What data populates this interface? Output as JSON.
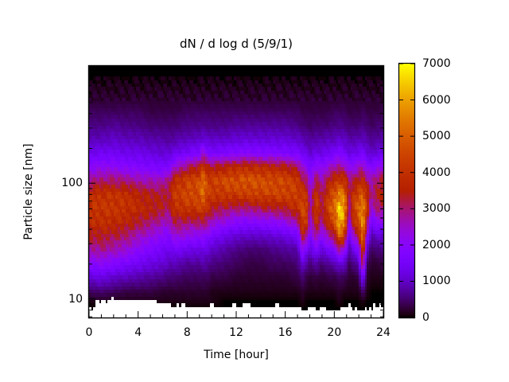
{
  "page": {
    "background": "#ffffff",
    "text_color": "#000000"
  },
  "chart_data": {
    "type": "heatmap",
    "title": "dN / d log d (5/9/1)",
    "xlabel": "Time [hour]",
    "ylabel": "Particle size [nm]",
    "x_range_hour": [
      0,
      24
    ],
    "y_scale": "log",
    "y_range_nm": [
      6.9,
      1030
    ],
    "x_major_ticks": [
      0,
      4,
      8,
      12,
      16,
      20,
      24
    ],
    "x_tick_labels": [
      "0",
      "4",
      "8",
      "12",
      "16",
      "20",
      "24"
    ],
    "x_minor_tick_step_hour": 1,
    "y_labeled_ticks": [
      {
        "value": 10,
        "label": "10"
      },
      {
        "value": 100,
        "label": "100"
      }
    ],
    "y_unlabeled_major_ticks": [
      1000
    ],
    "y_minor_ticks": [
      7,
      8,
      9,
      20,
      30,
      40,
      50,
      60,
      70,
      80,
      90,
      200,
      300,
      400,
      500,
      600,
      700,
      800,
      900
    ],
    "colorbar": {
      "min": 0,
      "max": 7000,
      "tick_values": [
        0,
        1000,
        2000,
        3000,
        4000,
        5000,
        6000,
        7000
      ],
      "tick_labels": [
        "0",
        "1000",
        "2000",
        "3000",
        "4000",
        "5000",
        "6000",
        "7000"
      ],
      "palette": "gnuplot pm3d rgbformulae 7,5,15 (R=sqrt(f), G=f^3, B=sin(2*pi*f))",
      "palette_stops": [
        "#000000",
        "#6001C7",
        "#8806F9",
        "#A7146F",
        "#C13000",
        "#D85D00",
        "#ECA100",
        "#FFFF00"
      ]
    },
    "value_scale": 100,
    "times_hour": [
      0,
      1,
      2,
      3,
      4,
      5,
      6,
      6.5,
      7,
      8,
      9,
      9.3,
      9.7,
      10,
      11,
      12,
      13,
      14,
      15,
      16,
      17,
      17.4,
      17.8,
      18,
      18.5,
      19,
      19.5,
      20,
      20.4,
      20.8,
      21.2,
      21.6,
      22,
      22.3,
      22.7,
      23,
      23.4,
      24
    ],
    "sizes_nm": [
      950,
      720,
      545,
      415,
      315,
      240,
      182,
      138,
      105,
      80,
      61,
      46,
      35,
      26.5,
      20,
      15.2,
      11.5,
      9.5,
      8.2,
      7.0
    ],
    "values_x100": [
      [
        0,
        1,
        2,
        4,
        6,
        9,
        13,
        20,
        28,
        38,
        40,
        38,
        33,
        27,
        19,
        11,
        4,
        1,
        0,
        0
      ],
      [
        0,
        1,
        2,
        4,
        6,
        9,
        14,
        21,
        30,
        40,
        41,
        39,
        34,
        28,
        20,
        12,
        5,
        1,
        0,
        0
      ],
      [
        0,
        1,
        2,
        4,
        7,
        10,
        14,
        21,
        30,
        40,
        41,
        38,
        32,
        26,
        18,
        10,
        4,
        1,
        0,
        0
      ],
      [
        0,
        1,
        2,
        4,
        6,
        9,
        13,
        19,
        29,
        39,
        40,
        36,
        30,
        24,
        16,
        9,
        3,
        1,
        0,
        0
      ],
      [
        0,
        1,
        2,
        4,
        6,
        9,
        13,
        18,
        27,
        36,
        38,
        33,
        26,
        20,
        14,
        8,
        3,
        1,
        0,
        0
      ],
      [
        0,
        1,
        2,
        3,
        5,
        8,
        12,
        17,
        26,
        34,
        36,
        30,
        23,
        17,
        12,
        7,
        3,
        1,
        0,
        0
      ],
      [
        0,
        1,
        2,
        3,
        5,
        8,
        11,
        16,
        26,
        33,
        34,
        26,
        20,
        15,
        11,
        6,
        2,
        1,
        0,
        0
      ],
      [
        0,
        1,
        2,
        3,
        5,
        7,
        11,
        17,
        30,
        33,
        31,
        25,
        18,
        13,
        9,
        5,
        2,
        1,
        0,
        0
      ],
      [
        0,
        1,
        2,
        3,
        5,
        8,
        13,
        24,
        38,
        42,
        40,
        32,
        24,
        15,
        9,
        5,
        2,
        1,
        0,
        0
      ],
      [
        0,
        1,
        2,
        4,
        6,
        9,
        15,
        30,
        43,
        45,
        41,
        30,
        22,
        13,
        7,
        4,
        2,
        1,
        0,
        0
      ],
      [
        0,
        1,
        2,
        4,
        6,
        10,
        17,
        34,
        46,
        46,
        42,
        30,
        20,
        12,
        7,
        4,
        2,
        1,
        0,
        0
      ],
      [
        0,
        1,
        2,
        4,
        7,
        11,
        24,
        40,
        53,
        52,
        44,
        32,
        21,
        13,
        8,
        4,
        2,
        1,
        0,
        0
      ],
      [
        0,
        1,
        2,
        4,
        6,
        10,
        17,
        34,
        44,
        44,
        38,
        28,
        18,
        11,
        7,
        4,
        2,
        1,
        0,
        0
      ],
      [
        0,
        1,
        2,
        4,
        6,
        10,
        16,
        33,
        43,
        41,
        34,
        25,
        16,
        10,
        6,
        3,
        1,
        1,
        0,
        0
      ],
      [
        0,
        1,
        2,
        4,
        6,
        10,
        17,
        35,
        46,
        42,
        32,
        22,
        13,
        8,
        5,
        3,
        1,
        0,
        0,
        0
      ],
      [
        0,
        1,
        2,
        4,
        7,
        11,
        18,
        37,
        47,
        42,
        30,
        19,
        11,
        6,
        4,
        2,
        1,
        0,
        0,
        0
      ],
      [
        0,
        1,
        2,
        4,
        7,
        11,
        19,
        38,
        48,
        43,
        30,
        18,
        10,
        5,
        3,
        2,
        1,
        0,
        0,
        0
      ],
      [
        0,
        1,
        2,
        4,
        7,
        11,
        18,
        37,
        47,
        44,
        32,
        19,
        10,
        5,
        3,
        2,
        1,
        0,
        0,
        0
      ],
      [
        0,
        1,
        2,
        4,
        7,
        11,
        18,
        36,
        46,
        44,
        33,
        20,
        11,
        6,
        4,
        2,
        1,
        0,
        0,
        0
      ],
      [
        0,
        1,
        2,
        4,
        7,
        11,
        17,
        35,
        45,
        44,
        34,
        22,
        12,
        7,
        4,
        2,
        1,
        0,
        0,
        0
      ],
      [
        0,
        1,
        2,
        4,
        6,
        10,
        16,
        30,
        41,
        43,
        39,
        27,
        15,
        8,
        5,
        3,
        1,
        0,
        0,
        0
      ],
      [
        0,
        1,
        2,
        3,
        5,
        9,
        14,
        24,
        34,
        42,
        45,
        42,
        33,
        21,
        11,
        5,
        2,
        1,
        0,
        0
      ],
      [
        0,
        1,
        2,
        3,
        5,
        8,
        12,
        20,
        29,
        37,
        42,
        40,
        28,
        15,
        7,
        3,
        1,
        0,
        0,
        0
      ],
      [
        0,
        1,
        2,
        3,
        4,
        7,
        10,
        15,
        19,
        23,
        24,
        22,
        16,
        10,
        5,
        2,
        1,
        0,
        0,
        0
      ],
      [
        0,
        1,
        2,
        3,
        5,
        8,
        13,
        22,
        32,
        40,
        43,
        38,
        28,
        17,
        8,
        3,
        1,
        0,
        0,
        0
      ],
      [
        0,
        1,
        2,
        3,
        5,
        8,
        12,
        19,
        25,
        30,
        32,
        28,
        19,
        11,
        5,
        2,
        1,
        0,
        0,
        0
      ],
      [
        0,
        1,
        2,
        3,
        5,
        9,
        14,
        24,
        34,
        41,
        44,
        38,
        27,
        15,
        7,
        3,
        1,
        0,
        0,
        0
      ],
      [
        0,
        1,
        2,
        4,
        6,
        9,
        15,
        26,
        38,
        47,
        52,
        46,
        32,
        18,
        8,
        3,
        1,
        0,
        0,
        0
      ],
      [
        0,
        1,
        2,
        4,
        6,
        10,
        18,
        28,
        42,
        55,
        65,
        62,
        48,
        26,
        11,
        4,
        2,
        1,
        0,
        0
      ],
      [
        0,
        1,
        2,
        4,
        6,
        10,
        15,
        27,
        40,
        52,
        60,
        56,
        42,
        23,
        10,
        4,
        1,
        0,
        0,
        0
      ],
      [
        0,
        1,
        2,
        3,
        5,
        8,
        12,
        20,
        30,
        31,
        28,
        22,
        14,
        8,
        4,
        2,
        1,
        0,
        0,
        0
      ],
      [
        0,
        1,
        2,
        3,
        5,
        8,
        13,
        22,
        32,
        40,
        43,
        37,
        25,
        13,
        6,
        2,
        1,
        0,
        0,
        0
      ],
      [
        0,
        1,
        2,
        3,
        5,
        9,
        14,
        24,
        35,
        44,
        50,
        46,
        34,
        19,
        9,
        3,
        1,
        0,
        0,
        0
      ],
      [
        0,
        1,
        2,
        4,
        6,
        9,
        15,
        26,
        38,
        50,
        58,
        60,
        55,
        42,
        32,
        16,
        5,
        1,
        0,
        0
      ],
      [
        0,
        1,
        2,
        3,
        5,
        8,
        12,
        20,
        30,
        38,
        40,
        32,
        20,
        10,
        4,
        2,
        1,
        0,
        0,
        0
      ],
      [
        0,
        1,
        2,
        3,
        4,
        7,
        10,
        18,
        26,
        26,
        22,
        14,
        8,
        4,
        2,
        1,
        0,
        0,
        0,
        0
      ],
      [
        0,
        1,
        2,
        3,
        5,
        7,
        11,
        20,
        30,
        34,
        30,
        20,
        10,
        5,
        2,
        1,
        0,
        0,
        0,
        0
      ],
      [
        0,
        1,
        2,
        3,
        5,
        8,
        13,
        24,
        34,
        36,
        30,
        20,
        11,
        6,
        3,
        1,
        0,
        0,
        0,
        0
      ]
    ],
    "no_data_min_size_nm": [
      8.2,
      9.2,
      10,
      10,
      9.9,
      9.6,
      9,
      8.8,
      8.6,
      8.8,
      8.5,
      8.6,
      8.4,
      8.6,
      8.3,
      8.6,
      8.8,
      8.5,
      8.6,
      8.3,
      8.4,
      8.1,
      8.3,
      8.4,
      8.2,
      8.6,
      8.3,
      8.1,
      8.2,
      8.4,
      8.6,
      8.2,
      7.9,
      7.7,
      8.1,
      8.4,
      8.6,
      8.8
    ],
    "texture_noise": [
      1,
      3,
      0,
      2,
      2,
      1,
      3,
      0,
      1,
      2,
      3,
      1,
      0,
      2,
      1,
      3,
      2,
      0,
      3,
      1,
      2,
      0,
      1,
      3,
      0,
      2,
      3,
      1,
      2,
      0,
      3,
      2
    ]
  }
}
